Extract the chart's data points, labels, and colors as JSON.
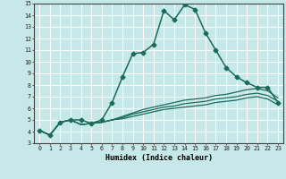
{
  "xlabel": "Humidex (Indice chaleur)",
  "ylabel": "",
  "bg_color": "#c6e8e8",
  "line_color": "#1a6b5a",
  "grid_color": "#ffffff",
  "grid_minor_color": "#daf0f0",
  "xlim": [
    -0.5,
    23.5
  ],
  "ylim": [
    3,
    15
  ],
  "xtick_labels": [
    "0",
    "1",
    "2",
    "3",
    "4",
    "5",
    "6",
    "7",
    "8",
    "9",
    "10",
    "11",
    "12",
    "13",
    "14",
    "15",
    "16",
    "17",
    "18",
    "19",
    "20",
    "21",
    "22",
    "23"
  ],
  "ytick_labels": [
    "3",
    "4",
    "5",
    "6",
    "7",
    "8",
    "9",
    "10",
    "11",
    "12",
    "13",
    "14",
    "15"
  ],
  "series": [
    {
      "x": [
        0,
        1,
        2,
        3,
        4,
        5,
        6,
        7,
        8,
        9,
        10,
        11,
        12,
        13,
        14,
        15,
        16,
        17,
        18,
        19,
        20,
        21,
        22,
        23
      ],
      "y": [
        4.1,
        3.7,
        4.8,
        5.0,
        5.0,
        4.7,
        5.0,
        6.5,
        8.7,
        10.7,
        10.8,
        11.5,
        14.4,
        13.6,
        14.9,
        14.5,
        12.5,
        11.0,
        9.5,
        8.7,
        8.2,
        7.8,
        7.8,
        6.5
      ],
      "marker": "D",
      "markersize": 2.5,
      "linewidth": 1.1,
      "zorder": 4
    },
    {
      "x": [
        0,
        1,
        2,
        3,
        4,
        5,
        6,
        7,
        8,
        9,
        10,
        11,
        12,
        13,
        14,
        15,
        16,
        17,
        18,
        19,
        20,
        21,
        22,
        23
      ],
      "y": [
        4.1,
        3.7,
        4.8,
        5.0,
        4.6,
        4.7,
        4.8,
        5.0,
        5.3,
        5.6,
        5.9,
        6.1,
        6.3,
        6.5,
        6.7,
        6.8,
        6.9,
        7.1,
        7.2,
        7.4,
        7.6,
        7.7,
        7.5,
        6.9
      ],
      "marker": null,
      "markersize": 0,
      "linewidth": 0.9,
      "zorder": 2
    },
    {
      "x": [
        0,
        1,
        2,
        3,
        4,
        5,
        6,
        7,
        8,
        9,
        10,
        11,
        12,
        13,
        14,
        15,
        16,
        17,
        18,
        19,
        20,
        21,
        22,
        23
      ],
      "y": [
        4.1,
        3.7,
        4.8,
        5.0,
        4.6,
        4.7,
        4.8,
        5.0,
        5.2,
        5.5,
        5.7,
        5.9,
        6.1,
        6.2,
        6.4,
        6.5,
        6.6,
        6.8,
        6.9,
        7.0,
        7.2,
        7.3,
        7.1,
        6.6
      ],
      "marker": null,
      "markersize": 0,
      "linewidth": 0.9,
      "zorder": 2
    },
    {
      "x": [
        0,
        1,
        2,
        3,
        4,
        5,
        6,
        7,
        8,
        9,
        10,
        11,
        12,
        13,
        14,
        15,
        16,
        17,
        18,
        19,
        20,
        21,
        22,
        23
      ],
      "y": [
        4.1,
        3.7,
        4.8,
        5.0,
        4.6,
        4.7,
        4.8,
        5.0,
        5.1,
        5.3,
        5.5,
        5.7,
        5.9,
        6.0,
        6.1,
        6.2,
        6.3,
        6.5,
        6.6,
        6.7,
        6.9,
        7.0,
        6.8,
        6.3
      ],
      "marker": null,
      "markersize": 0,
      "linewidth": 0.9,
      "zorder": 2
    }
  ]
}
